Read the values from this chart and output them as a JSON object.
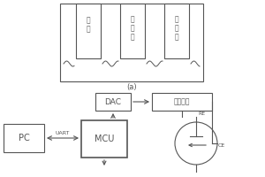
{
  "bg_color": "#ffffff",
  "line_color": "#555555",
  "label_a": "(a)",
  "label_DAC": "DAC",
  "label_MCU": "MCU",
  "label_PC": "PC",
  "label_UART": "UART",
  "label_potentiostat": "恒电位仪",
  "label_WE": "电\n极",
  "label_CE_text": "作\n电\n极",
  "label_RE_text": "比\n电\n极",
  "label_RE": "RE",
  "label_CE": "CE"
}
